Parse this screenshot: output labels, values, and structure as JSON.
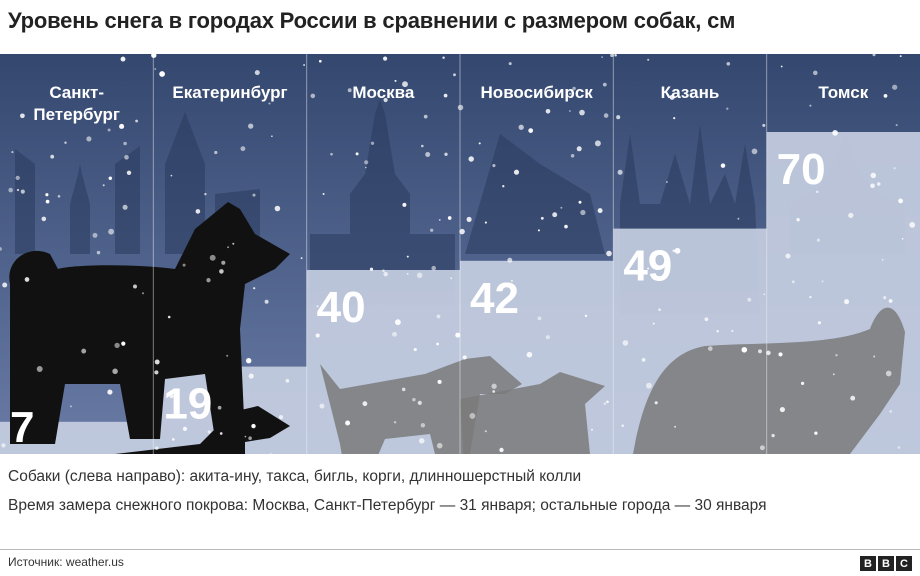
{
  "title": "Уровень снега в городах России в сравнении с размером собак, см",
  "chart_data": {
    "type": "bar",
    "categories": [
      "Санкт-Петербург",
      "Екатеринбург",
      "Москва",
      "Новосибирск",
      "Казань",
      "Томск"
    ],
    "values": [
      7,
      19,
      40,
      42,
      49,
      70
    ],
    "unit": "см",
    "ylim": [
      0,
      80
    ],
    "category_label_lines": [
      [
        "Санкт-",
        "Петербург"
      ],
      [
        "Екатеринбург"
      ],
      [
        "Москва"
      ],
      [
        "Новосибирск"
      ],
      [
        "Казань"
      ],
      [
        "Томск"
      ]
    ],
    "dogs": [
      "акита-ину",
      "такса",
      "бигль",
      "корги",
      "длинношерстный колли"
    ]
  },
  "captions": {
    "dogs": "Собаки (слева направо): акита-ину, такса, бигль, корги, длинношерстный колли",
    "measurement": "Время замера снежного покрова: Москва, Санкт-Петербург — 31 января; остальные города — 30 января"
  },
  "source": "Источник: weather.us",
  "logo_letters": [
    "B",
    "B",
    "C"
  ],
  "colors": {
    "sky_top": "#33476f",
    "sky_bottom": "#6477a2",
    "snow": "#c5cee1",
    "silhouette": "#2a3a5c",
    "dog_black": "#111111",
    "dog_grey": "#7a7a7a",
    "city_label": "#ffffff"
  }
}
